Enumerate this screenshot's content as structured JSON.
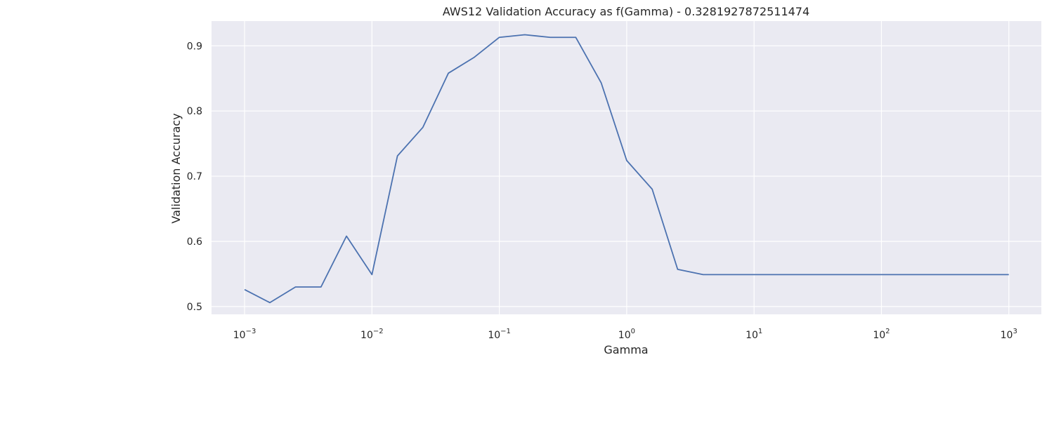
{
  "chart_data": {
    "type": "line",
    "title": "AWS12 Validation Accuracy as f(Gamma) - 0.3281927872511474",
    "xlabel": "Gamma",
    "ylabel": "Validation Accuracy",
    "xscale": "log",
    "xlim": [
      0.00055,
      1800
    ],
    "ylim": [
      0.488,
      0.938
    ],
    "grid": true,
    "legend": "none",
    "colors": {
      "background": "#EAEAF2",
      "grid": "#FFFFFF",
      "line": "#4C72B0"
    },
    "xticks": [
      {
        "value": 0.001,
        "base": "10",
        "exp": "−3"
      },
      {
        "value": 0.01,
        "base": "10",
        "exp": "−2"
      },
      {
        "value": 0.1,
        "base": "10",
        "exp": "−1"
      },
      {
        "value": 1,
        "base": "10",
        "exp": "0"
      },
      {
        "value": 10,
        "base": "10",
        "exp": "1"
      },
      {
        "value": 100,
        "base": "10",
        "exp": "2"
      },
      {
        "value": 1000,
        "base": "10",
        "exp": "3"
      }
    ],
    "yticks": [
      {
        "value": 0.5,
        "label": "0.5"
      },
      {
        "value": 0.6,
        "label": "0.6"
      },
      {
        "value": 0.7,
        "label": "0.7"
      },
      {
        "value": 0.8,
        "label": "0.8"
      },
      {
        "value": 0.9,
        "label": "0.9"
      }
    ],
    "series": [
      {
        "x": [
          0.001,
          0.00158,
          0.00251,
          0.00398,
          0.00631,
          0.01,
          0.01585,
          0.02512,
          0.03981,
          0.0631,
          0.1,
          0.1585,
          0.2512,
          0.3981,
          0.631,
          1.0,
          1.585,
          2.512,
          3.981,
          6.31,
          10,
          15.85,
          25.12,
          39.81,
          63.1,
          100,
          158.5,
          251.2,
          398.1,
          631,
          1000
        ],
        "y": [
          0.526,
          0.506,
          0.53,
          0.53,
          0.608,
          0.549,
          0.731,
          0.775,
          0.858,
          0.882,
          0.913,
          0.917,
          0.913,
          0.913,
          0.843,
          0.724,
          0.68,
          0.557,
          0.549,
          0.549,
          0.549,
          0.549,
          0.549,
          0.549,
          0.549,
          0.549,
          0.549,
          0.549,
          0.549,
          0.549,
          0.549
        ]
      }
    ]
  }
}
